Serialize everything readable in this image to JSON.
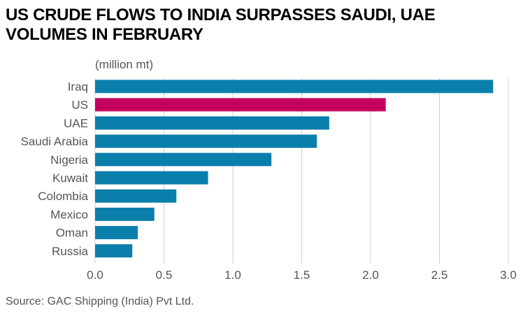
{
  "header": {
    "title": "US CRUDE FLOWS TO INDIA SURPASSES SAUDI, UAE VOLUMES IN FEBRUARY",
    "unit": "(million mt)"
  },
  "footer": {
    "source": "Source: GAC Shipping (India) Pvt Ltd."
  },
  "colors": {
    "default_bar": "#0b7fab",
    "highlight_bar": "#c4005e",
    "grid": "#d0d0d0",
    "label": "#555555"
  },
  "chart_data": {
    "type": "bar",
    "orientation": "horizontal",
    "title": "US CRUDE FLOWS TO INDIA SURPASSES SAUDI, UAE VOLUMES IN FEBRUARY",
    "xlabel": "",
    "ylabel": "",
    "unit": "(million mt)",
    "categories": [
      "Iraq",
      "US",
      "UAE",
      "Saudi Arabia",
      "Nigeria",
      "Kuwait",
      "Colombia",
      "Mexico",
      "Oman",
      "Russia"
    ],
    "values": [
      2.89,
      2.11,
      1.7,
      1.61,
      1.28,
      0.82,
      0.59,
      0.43,
      0.31,
      0.27
    ],
    "highlight": "US",
    "xlim": [
      0,
      3.0
    ],
    "xticks": [
      0.0,
      0.5,
      1.0,
      1.5,
      2.0,
      2.5,
      3.0
    ],
    "xtick_labels": [
      "0.0",
      "0.5",
      "1.0",
      "1.5",
      "2.0",
      "2.5",
      "3.0"
    ],
    "grid": "vertical",
    "legend": "none"
  }
}
